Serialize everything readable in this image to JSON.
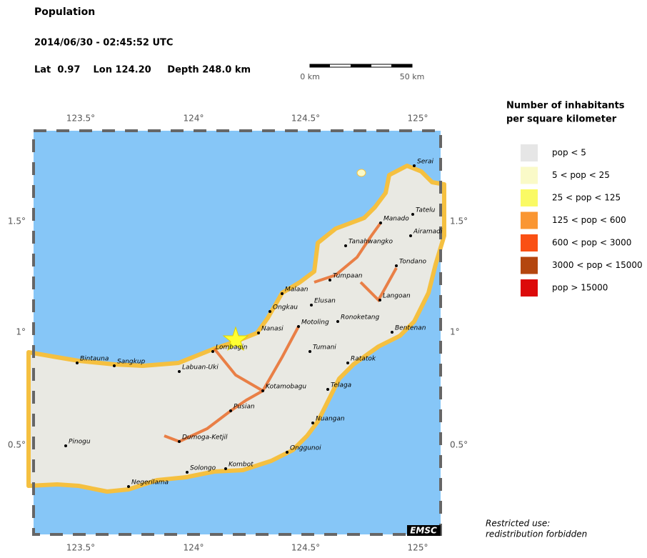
{
  "header": {
    "title": "Population",
    "datetime": "2014/06/30 - 02:45:52 UTC",
    "location": "Lat  0.97    Lon 124.20     Depth 248.0 km"
  },
  "scale_bar": {
    "start": "0 km",
    "end": "50 km"
  },
  "map": {
    "lon_ticks": [
      "123.5°",
      "124°",
      "124.5°",
      "125°"
    ],
    "lat_ticks": [
      "1.5°",
      "1°",
      "0.5°"
    ],
    "cities": [
      "Serai",
      "Tatelu",
      "Manado",
      "Airamadi",
      "Tanahwangko",
      "Tondano",
      "Tumpaan",
      "Langoan",
      "Malaan",
      "Elusan",
      "Ongkau",
      "Ronoketang",
      "Motoling",
      "Nanasi",
      "Bentenan",
      "Lombagin",
      "Tumani",
      "Bintauna",
      "Sangkup",
      "Ratatok",
      "Labuan-Uki",
      "Kotamobagu",
      "Telaga",
      "Pusian",
      "Nuangan",
      "Dumoga-Ketjil",
      "Pinogu",
      "Onggunoi",
      "Kombot",
      "Solongo",
      "Negerilama"
    ],
    "logo": "EMSC"
  },
  "legend": {
    "title": [
      "Number of inhabitants",
      "per square kilometer"
    ],
    "items": [
      {
        "label": "pop < 5",
        "color": "#e6e6e6"
      },
      {
        "label": "5 < pop < 25",
        "color": "#fafac8"
      },
      {
        "label": "25 < pop < 125",
        "color": "#fafa64"
      },
      {
        "label": "125 < pop < 600",
        "color": "#fa9632"
      },
      {
        "label": "600 < pop < 3000",
        "color": "#fa5014"
      },
      {
        "label": "3000 < pop < 15000",
        "color": "#b4460f"
      },
      {
        "label": "pop > 15000",
        "color": "#dc0a0a"
      }
    ]
  },
  "note": [
    "Restricted use:",
    "redistribution forbidden"
  ]
}
